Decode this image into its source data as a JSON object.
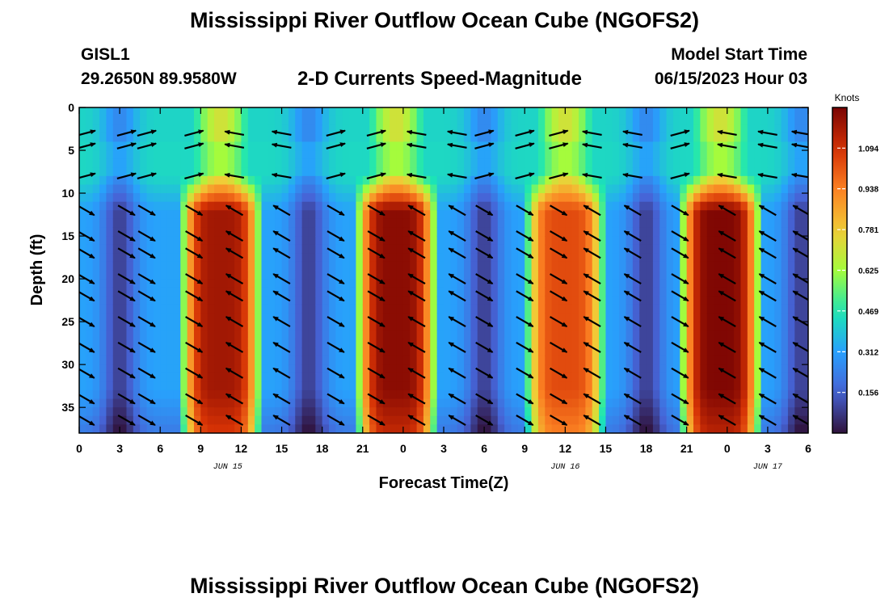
{
  "page": {
    "title": "Mississippi River Outflow Ocean Cube (NGOFS2)",
    "title_repeat": "Mississippi River Outflow Ocean Cube (NGOFS2)",
    "station": "GISL1",
    "coords": "29.2650N  89.9580W",
    "subtitle": "2-D Currents Speed-Magnitude",
    "model_start_label": "Model Start Time",
    "model_start_value": "06/15/2023 Hour 03"
  },
  "chart_data": {
    "type": "heatmap",
    "xlabel": "Forecast Time(Z)",
    "ylabel": "Depth (ft)",
    "x_range_hours": [
      0,
      54
    ],
    "y_range_ft": [
      0,
      38
    ],
    "y_inverted": true,
    "x_tick_labels": [
      "0",
      "3",
      "6",
      "9",
      "12",
      "15",
      "18",
      "21",
      "0",
      "3",
      "6",
      "9",
      "12",
      "15",
      "18",
      "21",
      "0",
      "3",
      "6"
    ],
    "y_ticks": [
      0,
      5,
      10,
      15,
      20,
      25,
      30,
      35
    ],
    "date_labels": [
      {
        "text": "JUN 15",
        "hour": 11
      },
      {
        "text": "JUN 16",
        "hour": 36
      },
      {
        "text": "JUN 17",
        "hour": 51
      }
    ],
    "colorbar": {
      "unit": "Knots",
      "min": 0.0,
      "max": 1.25,
      "tick_labels": [
        "1.094",
        "0.938",
        "0.781",
        "0.625",
        "0.469",
        "0.312",
        "0.156"
      ],
      "tick_values": [
        1.094,
        0.938,
        0.781,
        0.625,
        0.469,
        0.312,
        0.156
      ]
    },
    "maxima": [
      {
        "hour": 10.5,
        "depth_peak_ft": 20,
        "speed_kn": 1.18
      },
      {
        "hour": 23.5,
        "depth_peak_ft": 20,
        "speed_kn": 1.22
      },
      {
        "hour": 36.0,
        "depth_peak_ft": 20,
        "speed_kn": 1.04
      },
      {
        "hour": 47.5,
        "depth_peak_ft": 18,
        "speed_kn": 1.24
      }
    ],
    "minima_hours": [
      3.0,
      17.0,
      30.0,
      42.0,
      53.5
    ],
    "arrow_columns_hours": [
      0.5,
      3.5,
      5.0,
      8.5,
      11.5,
      15.0,
      19.0,
      22.0,
      25.0,
      28.0,
      30.0,
      33.0,
      35.5,
      38.0,
      41.0,
      44.5,
      48.0,
      51.0,
      53.5
    ],
    "arrow_rows_ft": [
      3,
      4.5,
      8,
      12,
      15,
      17,
      20,
      22,
      25,
      28,
      31,
      34,
      36.5
    ]
  }
}
